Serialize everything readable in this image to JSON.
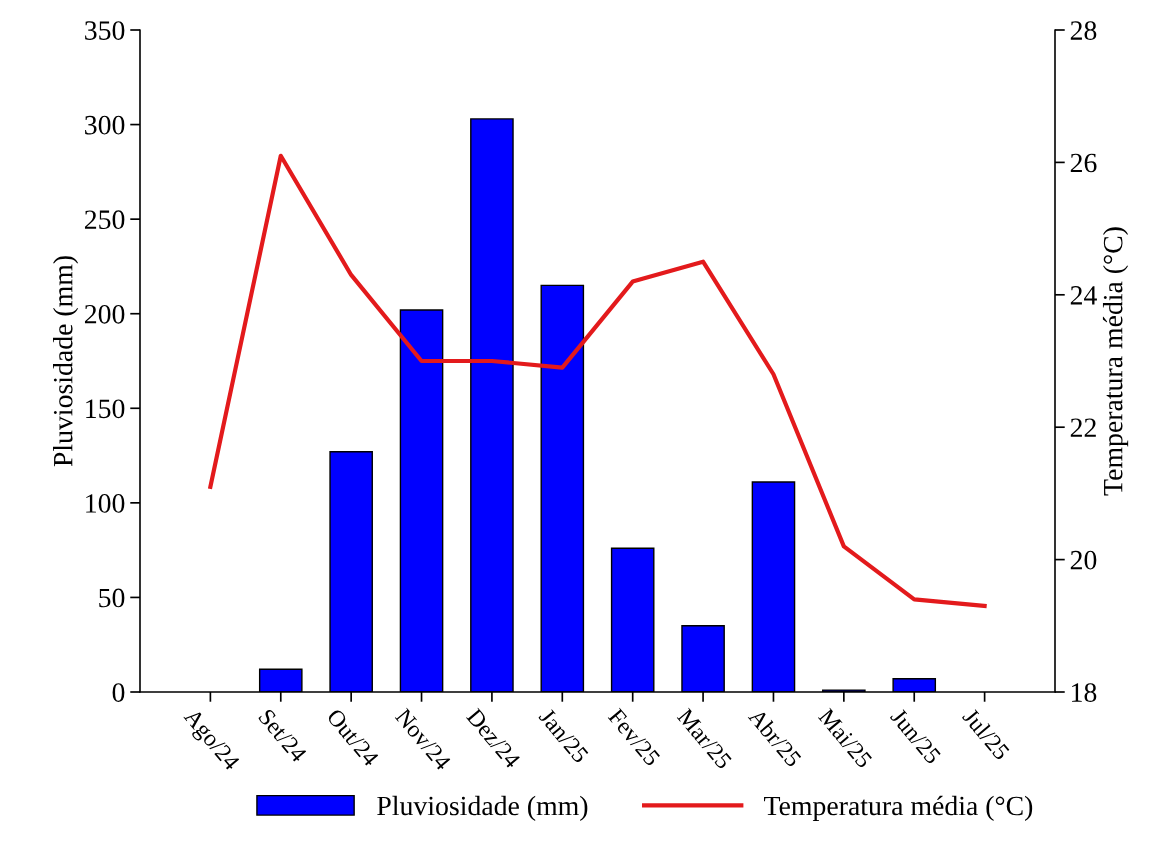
{
  "chart_data": {
    "type": "bar",
    "categories": [
      "Ago/24",
      "Set/24",
      "Out/24",
      "Nov/24",
      "Dez/24",
      "Jan/25",
      "Fev/25",
      "Mar/25",
      "Abr/25",
      "Mai/25",
      "Jun/25",
      "Jul/25"
    ],
    "series": [
      {
        "name": "Pluviosidade (mm)",
        "color": "#0000ff",
        "values": [
          0,
          12,
          127,
          202,
          303,
          215,
          76,
          35,
          111,
          1,
          7,
          0
        ]
      },
      {
        "name": "Temperatura média (°C)",
        "type": "line",
        "axis": "y2",
        "color": "#e31a1c",
        "values": [
          21.1,
          26.1,
          24.3,
          23.0,
          23.0,
          22.9,
          24.2,
          24.5,
          22.8,
          20.2,
          19.4,
          19.3
        ]
      }
    ],
    "ylabel": "Pluviosidade (mm)",
    "y2label": "Temperatura média (°C)",
    "ylim": [
      0,
      350
    ],
    "yticks": [
      0,
      50,
      100,
      150,
      200,
      250,
      300,
      350
    ],
    "y2lim": [
      18,
      28
    ],
    "y2ticks": [
      18,
      20,
      22,
      24,
      26,
      28
    ],
    "legend": "bottom",
    "grid": false,
    "marker": "none",
    "line_style": "solid"
  }
}
